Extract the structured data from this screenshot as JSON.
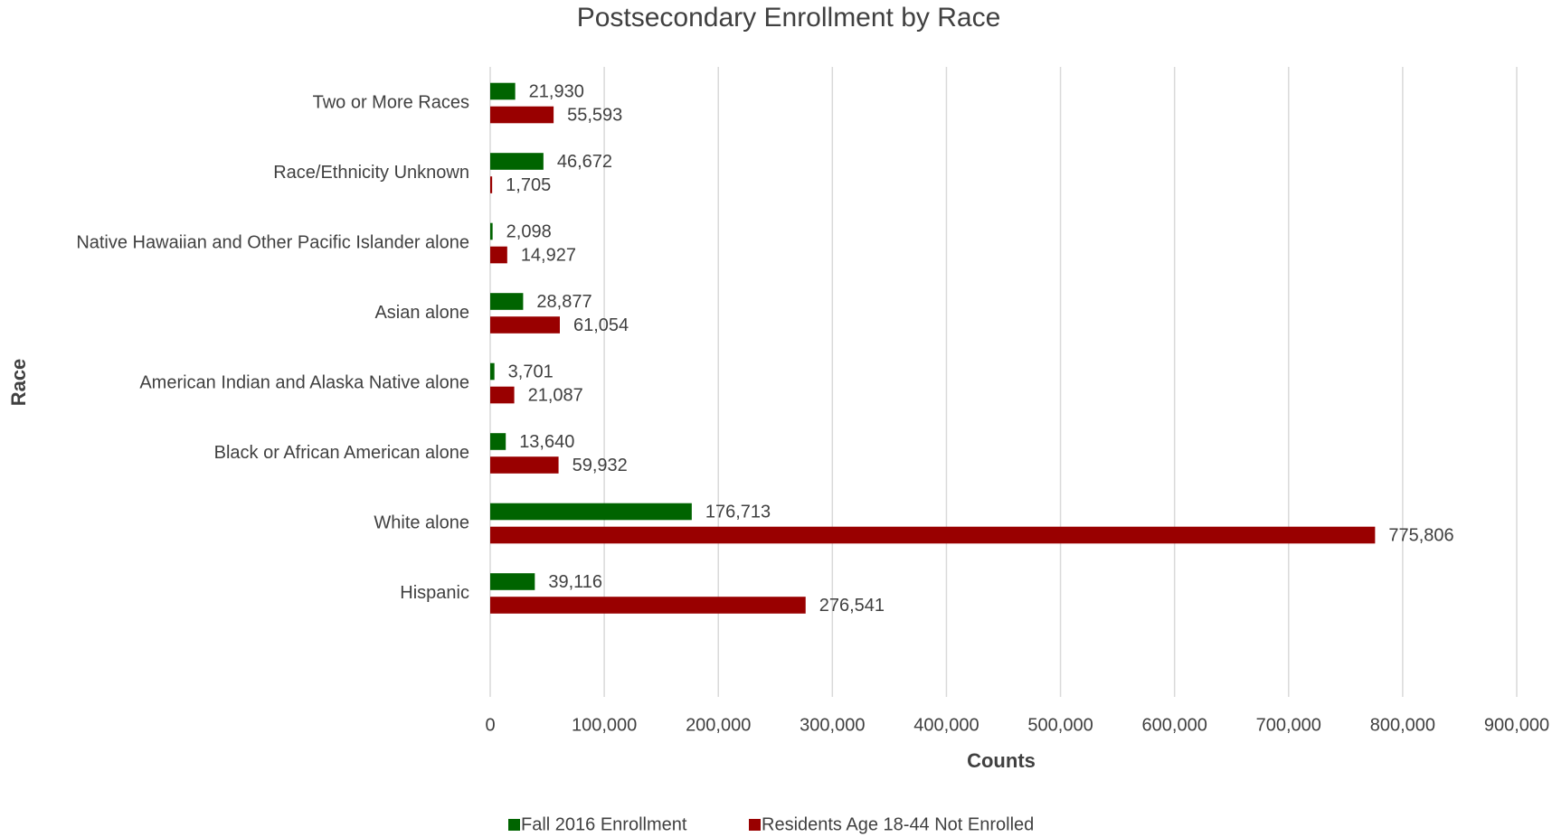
{
  "chart_data": {
    "type": "hbar",
    "title": "Postsecondary Enrollment by Race",
    "xlabel": "Counts",
    "ylabel": "Race",
    "categories": [
      "Two or More Races",
      "Race/Ethnicity Unknown",
      "Native Hawaiian and Other Pacific Islander alone",
      "Asian alone",
      "American Indian and Alaska Native alone",
      "Black or African American alone",
      "White alone",
      "Hispanic"
    ],
    "series": [
      {
        "name": "Fall 2016 Enrollment",
        "color": "#006400",
        "values": [
          21930,
          46672,
          2098,
          28877,
          3701,
          13640,
          176713,
          39116
        ],
        "value_labels": [
          "21,930",
          "46,672",
          "2,098",
          "28,877",
          "3,701",
          "13,640",
          "176,713",
          "39,116"
        ]
      },
      {
        "name": "Residents Age 18-44 Not Enrolled",
        "color": "#990000",
        "values": [
          55593,
          1705,
          14927,
          61054,
          21087,
          59932,
          775806,
          276541
        ],
        "value_labels": [
          "55,593",
          "1,705",
          "14,927",
          "61,054",
          "21,087",
          "59,932",
          "775,806",
          "276,541"
        ]
      }
    ],
    "xlim": [
      0,
      900000
    ],
    "xticks": [
      0,
      {
        "value": 100000,
        "label": "100,000"
      },
      {
        "value": 200000,
        "label": "200,000"
      },
      {
        "value": 300000,
        "label": "300,000"
      },
      {
        "value": 400000,
        "label": "400,000"
      },
      {
        "value": 500000,
        "label": "500,000"
      },
      {
        "value": 600000,
        "label": "600,000"
      },
      {
        "value": 700000,
        "label": "700,000"
      },
      {
        "value": 800000,
        "label": "800,000"
      },
      {
        "value": 900000,
        "label": "900,000"
      }
    ],
    "grid": true,
    "legend": "bottom"
  }
}
